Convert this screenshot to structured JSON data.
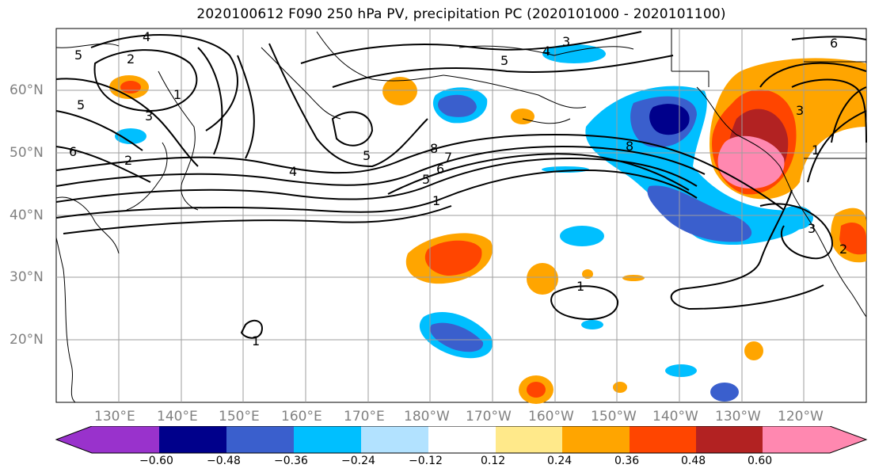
{
  "title": "2020100612 F090 250 hPa PV, precipitation PC (2020101000 - 2020101100)",
  "map": {
    "lat_labels": [
      "60°N",
      "50°N",
      "40°N",
      "30°N",
      "20°N"
    ],
    "lon_labels": [
      "130°E",
      "140°E",
      "150°E",
      "160°E",
      "170°E",
      "180°W",
      "170°W",
      "160°W",
      "150°W",
      "140°W",
      "130°W",
      "120°W"
    ],
    "pv_contour_labels": [
      "1",
      "2",
      "3",
      "4",
      "5",
      "6",
      "7",
      "8"
    ]
  },
  "colorbar": {
    "tick_labels": [
      "−0.60",
      "−0.48",
      "−0.36",
      "−0.24",
      "−0.12",
      "0.12",
      "0.24",
      "0.36",
      "0.48",
      "0.60"
    ],
    "colors": [
      "#9932cc",
      "#00008b",
      "#3a5fcd",
      "#00bfff",
      "#b2e2ff",
      "#ffffff",
      "#ffe98a",
      "#ffa500",
      "#ff4500",
      "#b22222",
      "#ff88b0"
    ]
  },
  "colors": {
    "coast": "#000000",
    "grid": "#9e9e9e",
    "contour": "#000000",
    "axis_text": "#808080"
  }
}
